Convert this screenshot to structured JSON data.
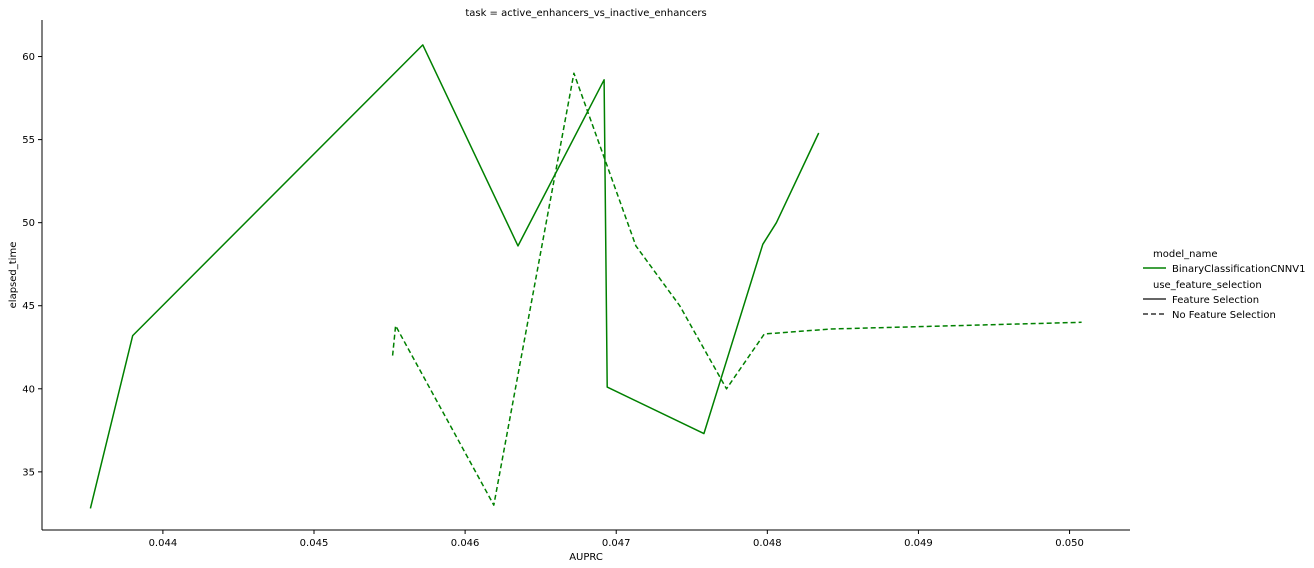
{
  "chart_data": {
    "type": "line",
    "title": "task = active_enhancers_vs_inactive_enhancers",
    "xlabel": "AUPRC",
    "ylabel": "elapsed_time",
    "xlim": [
      0.0432,
      0.0504
    ],
    "ylim": [
      31.5,
      62.2
    ],
    "xticks": [
      0.044,
      0.045,
      0.046,
      0.047,
      0.048,
      0.049,
      0.05
    ],
    "xtick_labels": [
      "0.044",
      "0.045",
      "0.046",
      "0.047",
      "0.048",
      "0.049",
      "0.050"
    ],
    "yticks": [
      35,
      40,
      45,
      50,
      55,
      60
    ],
    "ytick_labels": [
      "35",
      "40",
      "45",
      "50",
      "55",
      "60"
    ],
    "grid": false,
    "legend": {
      "placement": "right",
      "hue_title": "model_name",
      "hue_entries": [
        {
          "label": "BinaryClassificationCNNV1",
          "color": "#008000"
        }
      ],
      "style_title": "use_feature_selection",
      "style_entries": [
        {
          "label": "Feature Selection",
          "dash": "solid"
        },
        {
          "label": "No Feature Selection",
          "dash": "dashed"
        }
      ]
    },
    "series": [
      {
        "model": "BinaryClassificationCNNV1",
        "style": "Feature Selection",
        "color": "#008000",
        "dash": "solid",
        "points": [
          [
            0.04352,
            32.8
          ],
          [
            0.0438,
            43.2
          ],
          [
            0.04572,
            60.7
          ],
          [
            0.04635,
            48.6
          ],
          [
            0.04692,
            58.6
          ],
          [
            0.04694,
            40.1
          ],
          [
            0.04758,
            37.3
          ],
          [
            0.04797,
            48.7
          ],
          [
            0.04806,
            50.0
          ],
          [
            0.04834,
            55.4
          ]
        ]
      },
      {
        "model": "BinaryClassificationCNNV1",
        "style": "No Feature Selection",
        "color": "#008000",
        "dash": "dashed",
        "points": [
          [
            0.04552,
            42.0
          ],
          [
            0.04554,
            43.8
          ],
          [
            0.04619,
            33.0
          ],
          [
            0.04672,
            59.0
          ],
          [
            0.04713,
            48.6
          ],
          [
            0.04742,
            45.0
          ],
          [
            0.04773,
            40.0
          ],
          [
            0.04798,
            43.3
          ],
          [
            0.04842,
            43.6
          ],
          [
            0.05008,
            44.0
          ]
        ]
      }
    ]
  }
}
